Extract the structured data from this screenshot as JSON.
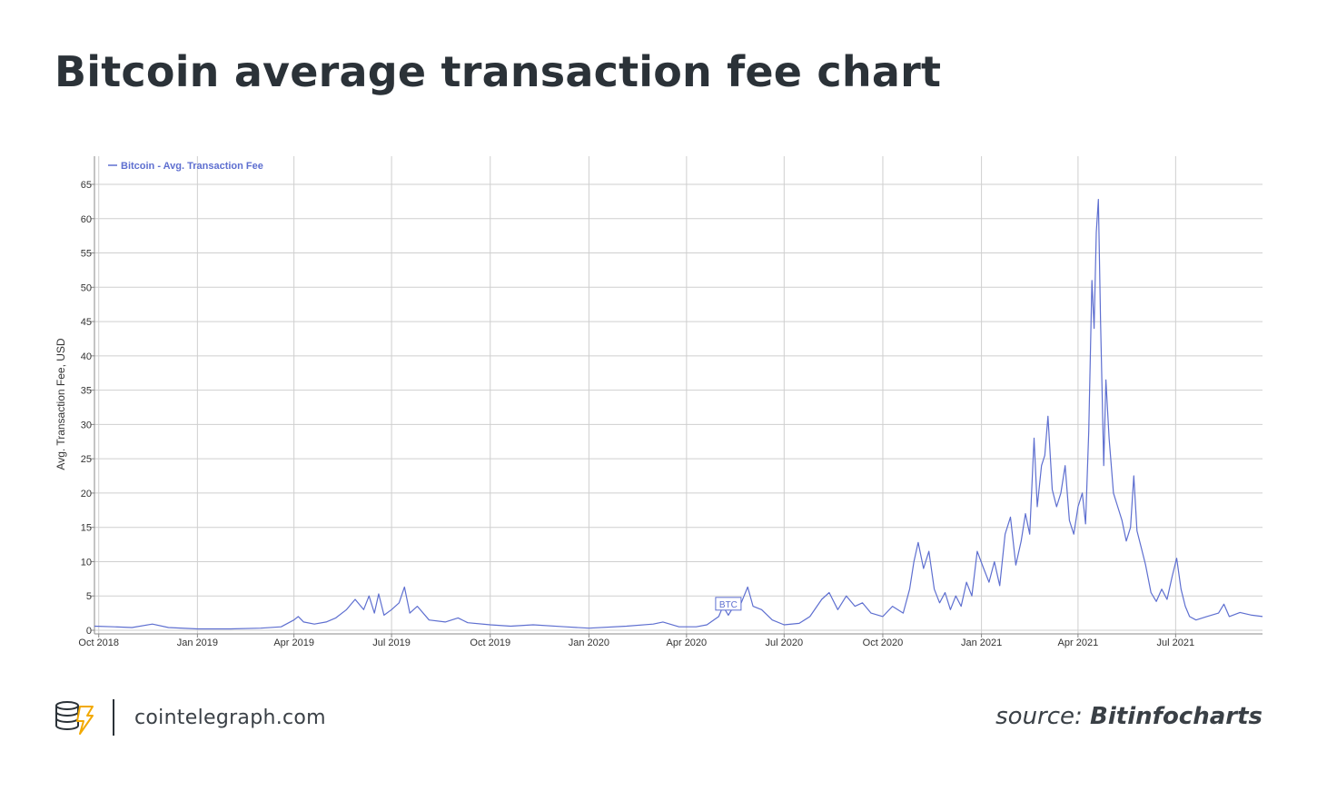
{
  "header": {
    "title": "Bitcoin average transaction fee chart"
  },
  "footer": {
    "site": "cointelegraph.com",
    "source_prefix": "source:",
    "source_name": "Bitinfocharts"
  },
  "chart_data": {
    "type": "line",
    "ylabel": "Avg. Transaction Fee, USD",
    "ylim": [
      0,
      65
    ],
    "yticks": [
      0,
      5,
      10,
      15,
      20,
      25,
      30,
      35,
      40,
      45,
      50,
      55,
      60,
      65
    ],
    "xlim": [
      "2018-09-27",
      "2021-09-20"
    ],
    "xticks": [
      {
        "date": "2018-10-01",
        "label": "Oct 2018"
      },
      {
        "date": "2019-01-01",
        "label": "Jan 2019"
      },
      {
        "date": "2019-04-01",
        "label": "Apr 2019"
      },
      {
        "date": "2019-07-01",
        "label": "Jul 2019"
      },
      {
        "date": "2019-10-01",
        "label": "Oct 2019"
      },
      {
        "date": "2020-01-01",
        "label": "Jan 2020"
      },
      {
        "date": "2020-04-01",
        "label": "Apr 2020"
      },
      {
        "date": "2020-07-01",
        "label": "Jul 2020"
      },
      {
        "date": "2020-10-01",
        "label": "Oct 2020"
      },
      {
        "date": "2021-01-01",
        "label": "Jan 2021"
      },
      {
        "date": "2021-04-01",
        "label": "Apr 2021"
      },
      {
        "date": "2021-07-01",
        "label": "Jul 2021"
      }
    ],
    "grid": true,
    "legend": "top-left",
    "series": [
      {
        "name": "Bitcoin - Avg. Transaction Fee",
        "color": "#5e6fd0",
        "points": [
          [
            "2018-09-27",
            0.6
          ],
          [
            "2018-10-15",
            0.5
          ],
          [
            "2018-11-01",
            0.4
          ],
          [
            "2018-11-20",
            0.9
          ],
          [
            "2018-12-05",
            0.4
          ],
          [
            "2019-01-01",
            0.2
          ],
          [
            "2019-02-01",
            0.2
          ],
          [
            "2019-03-01",
            0.3
          ],
          [
            "2019-03-20",
            0.5
          ],
          [
            "2019-04-01",
            1.5
          ],
          [
            "2019-04-05",
            2.0
          ],
          [
            "2019-04-10",
            1.2
          ],
          [
            "2019-04-20",
            0.9
          ],
          [
            "2019-05-01",
            1.2
          ],
          [
            "2019-05-10",
            1.8
          ],
          [
            "2019-05-20",
            3.0
          ],
          [
            "2019-05-28",
            4.5
          ],
          [
            "2019-06-05",
            3.0
          ],
          [
            "2019-06-10",
            5.0
          ],
          [
            "2019-06-15",
            2.5
          ],
          [
            "2019-06-19",
            5.3
          ],
          [
            "2019-06-24",
            2.2
          ],
          [
            "2019-07-01",
            3.0
          ],
          [
            "2019-07-08",
            4.0
          ],
          [
            "2019-07-13",
            6.3
          ],
          [
            "2019-07-18",
            2.5
          ],
          [
            "2019-07-25",
            3.5
          ],
          [
            "2019-08-05",
            1.5
          ],
          [
            "2019-08-20",
            1.2
          ],
          [
            "2019-09-01",
            1.8
          ],
          [
            "2019-09-10",
            1.1
          ],
          [
            "2019-10-01",
            0.8
          ],
          [
            "2019-10-20",
            0.6
          ],
          [
            "2019-11-10",
            0.8
          ],
          [
            "2019-12-10",
            0.5
          ],
          [
            "2020-01-01",
            0.3
          ],
          [
            "2020-02-05",
            0.6
          ],
          [
            "2020-03-01",
            0.9
          ],
          [
            "2020-03-10",
            1.2
          ],
          [
            "2020-03-25",
            0.5
          ],
          [
            "2020-04-10",
            0.5
          ],
          [
            "2020-04-20",
            0.8
          ],
          [
            "2020-05-01",
            2.0
          ],
          [
            "2020-05-05",
            3.5
          ],
          [
            "2020-05-10",
            2.2
          ],
          [
            "2020-05-15",
            3.5
          ],
          [
            "2020-05-22",
            4.0
          ],
          [
            "2020-05-28",
            6.3
          ],
          [
            "2020-06-02",
            3.5
          ],
          [
            "2020-06-10",
            3.0
          ],
          [
            "2020-06-20",
            1.5
          ],
          [
            "2020-07-01",
            0.8
          ],
          [
            "2020-07-15",
            1.0
          ],
          [
            "2020-07-25",
            2.0
          ],
          [
            "2020-08-05",
            4.5
          ],
          [
            "2020-08-12",
            5.5
          ],
          [
            "2020-08-20",
            3.0
          ],
          [
            "2020-08-28",
            5.0
          ],
          [
            "2020-09-05",
            3.5
          ],
          [
            "2020-09-12",
            4.0
          ],
          [
            "2020-09-20",
            2.5
          ],
          [
            "2020-10-01",
            2.0
          ],
          [
            "2020-10-10",
            3.5
          ],
          [
            "2020-10-20",
            2.5
          ],
          [
            "2020-10-26",
            6.0
          ],
          [
            "2020-10-30",
            10.0
          ],
          [
            "2020-11-03",
            12.8
          ],
          [
            "2020-11-08",
            9.0
          ],
          [
            "2020-11-13",
            11.5
          ],
          [
            "2020-11-18",
            6.0
          ],
          [
            "2020-11-23",
            4.0
          ],
          [
            "2020-11-28",
            5.5
          ],
          [
            "2020-12-03",
            3.0
          ],
          [
            "2020-12-08",
            5.0
          ],
          [
            "2020-12-13",
            3.5
          ],
          [
            "2020-12-18",
            7.0
          ],
          [
            "2020-12-23",
            5.0
          ],
          [
            "2020-12-28",
            11.5
          ],
          [
            "2021-01-03",
            9.0
          ],
          [
            "2021-01-08",
            7.0
          ],
          [
            "2021-01-13",
            10.0
          ],
          [
            "2021-01-18",
            6.5
          ],
          [
            "2021-01-23",
            14.0
          ],
          [
            "2021-01-28",
            16.5
          ],
          [
            "2021-02-02",
            9.5
          ],
          [
            "2021-02-07",
            13.0
          ],
          [
            "2021-02-11",
            17.0
          ],
          [
            "2021-02-15",
            14.0
          ],
          [
            "2021-02-19",
            28.0
          ],
          [
            "2021-02-22",
            18.0
          ],
          [
            "2021-02-26",
            24.0
          ],
          [
            "2021-03-01",
            25.5
          ],
          [
            "2021-03-04",
            31.2
          ],
          [
            "2021-03-08",
            20.5
          ],
          [
            "2021-03-12",
            18.0
          ],
          [
            "2021-03-16",
            20.0
          ],
          [
            "2021-03-20",
            24.0
          ],
          [
            "2021-03-24",
            16.0
          ],
          [
            "2021-03-28",
            14.0
          ],
          [
            "2021-04-01",
            18.0
          ],
          [
            "2021-04-05",
            20.0
          ],
          [
            "2021-04-08",
            15.5
          ],
          [
            "2021-04-11",
            29.0
          ],
          [
            "2021-04-14",
            51.0
          ],
          [
            "2021-04-16",
            44.0
          ],
          [
            "2021-04-18",
            58.0
          ],
          [
            "2021-04-20",
            62.8
          ],
          [
            "2021-04-22",
            45.0
          ],
          [
            "2021-04-25",
            24.0
          ],
          [
            "2021-04-27",
            36.5
          ],
          [
            "2021-04-30",
            28.0
          ],
          [
            "2021-05-04",
            20.0
          ],
          [
            "2021-05-08",
            18.0
          ],
          [
            "2021-05-12",
            16.0
          ],
          [
            "2021-05-16",
            13.0
          ],
          [
            "2021-05-20",
            15.0
          ],
          [
            "2021-05-23",
            22.5
          ],
          [
            "2021-05-26",
            14.5
          ],
          [
            "2021-05-30",
            12.0
          ],
          [
            "2021-06-03",
            9.5
          ],
          [
            "2021-06-08",
            5.5
          ],
          [
            "2021-06-13",
            4.2
          ],
          [
            "2021-06-18",
            6.0
          ],
          [
            "2021-06-23",
            4.5
          ],
          [
            "2021-06-28",
            8.0
          ],
          [
            "2021-07-02",
            10.5
          ],
          [
            "2021-07-06",
            6.0
          ],
          [
            "2021-07-10",
            3.5
          ],
          [
            "2021-07-14",
            2.0
          ],
          [
            "2021-07-20",
            1.5
          ],
          [
            "2021-07-30",
            2.0
          ],
          [
            "2021-08-10",
            2.5
          ],
          [
            "2021-08-15",
            3.8
          ],
          [
            "2021-08-20",
            2.0
          ],
          [
            "2021-08-30",
            2.6
          ],
          [
            "2021-09-10",
            2.2
          ],
          [
            "2021-09-20",
            2.0
          ]
        ]
      }
    ],
    "annotations": [
      {
        "date": "2020-05-10",
        "value": 3.2,
        "label": "BTC"
      }
    ]
  }
}
